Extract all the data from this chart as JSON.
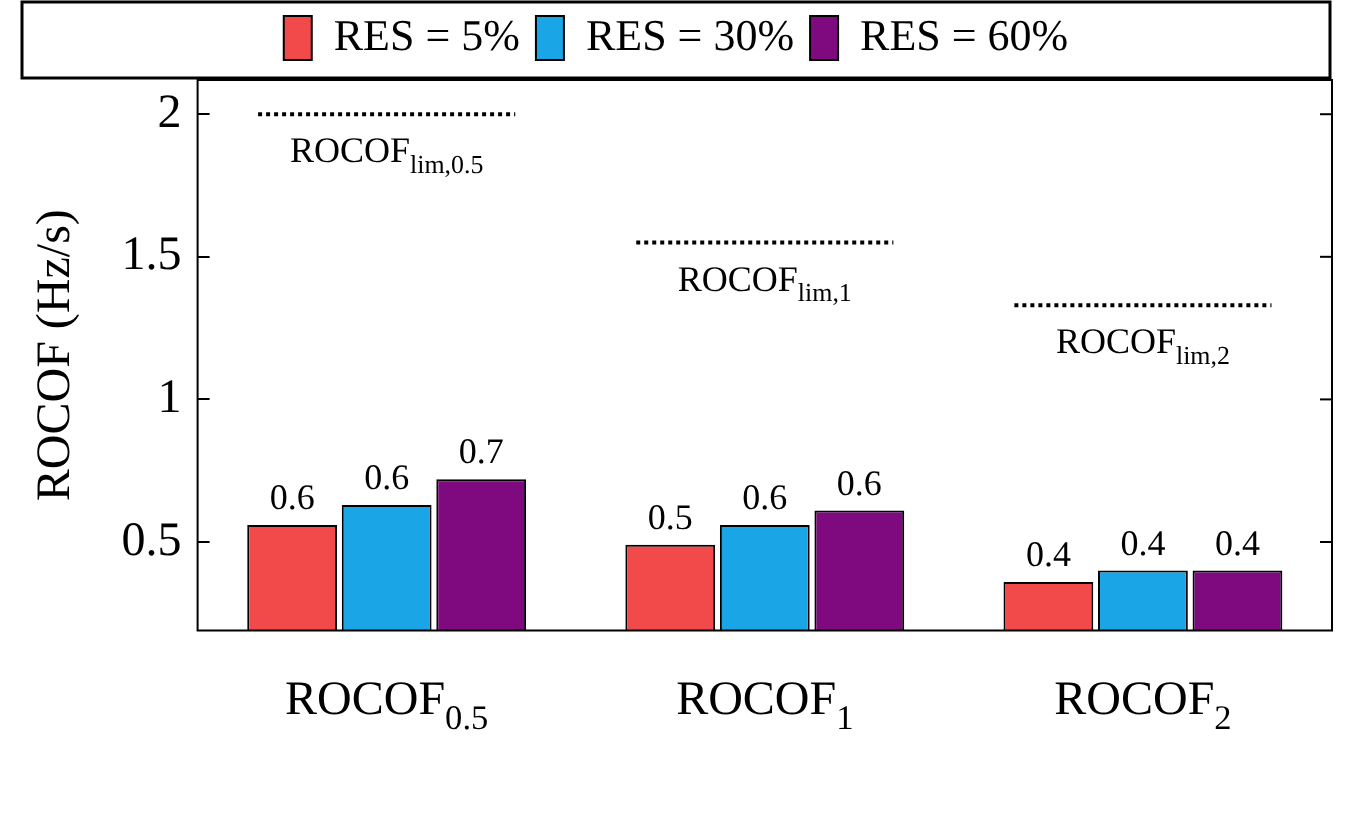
{
  "chart_data": {
    "type": "bar",
    "ylabel": "ROCOF (Hz/s)",
    "categories": [
      "ROCOF$_{0.5}$",
      "ROCOF$_{1}$",
      "ROCOF$_{2}$"
    ],
    "series": [
      {
        "name": "RES = 5%",
        "color": "#f24a4a",
        "values": [
          0.56,
          0.49,
          0.36
        ],
        "value_labels": [
          "0.6",
          "0.5",
          "0.4"
        ]
      },
      {
        "name": "RES = 30%",
        "color": "#1aa6e6",
        "values": [
          0.63,
          0.56,
          0.4
        ],
        "value_labels": [
          "0.6",
          "0.6",
          "0.4"
        ]
      },
      {
        "name": "RES = 60%",
        "color": "#7f0a7f",
        "values": [
          0.72,
          0.61,
          0.4
        ],
        "value_labels": [
          "0.7",
          "0.6",
          "0.4"
        ]
      }
    ],
    "ylim": [
      0.19,
      2.12
    ],
    "yticks": [
      0.5,
      1,
      1.5,
      2
    ],
    "grid": false,
    "legend": "top",
    "ref_lines": [
      {
        "axis": "y",
        "value": 2.0,
        "label": "ROCOF$_{lim,0.5}$",
        "line_style": "dotted"
      },
      {
        "axis": "y",
        "value": 1.55,
        "label": "ROCOF$_{lim,1}$",
        "line_style": "dotted"
      },
      {
        "axis": "y",
        "value": 1.33,
        "label": "ROCOF$_{lim,2}$",
        "line_style": "dotted"
      }
    ]
  }
}
